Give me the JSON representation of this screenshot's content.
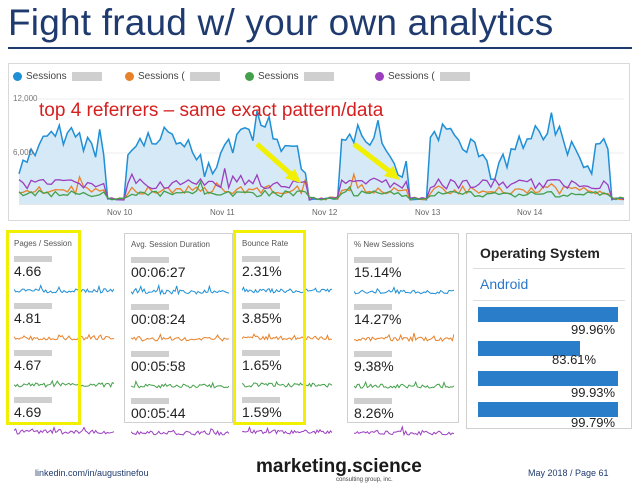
{
  "title": "Fight fraud w/ your own analytics",
  "main_chart": {
    "legend": [
      {
        "label": "Sessions",
        "color": "#1f8fd6"
      },
      {
        "label": "Sessions (",
        "color": "#e8822a"
      },
      {
        "label": "Sessions",
        "color": "#44a04a"
      },
      {
        "label": "Sessions (",
        "color": "#9b3fbf"
      }
    ],
    "annotation": "top 4 referrers – same exact pattern/data",
    "y_max_label": "12,000",
    "y_mid_label": "6,000",
    "x_labels": [
      "Nov 10",
      "Nov 11",
      "Nov 12",
      "Nov 13",
      "Nov 14"
    ]
  },
  "metric_cards": [
    {
      "title": "Pages / Session",
      "values": [
        "4.66",
        "4.81",
        "4.67",
        "4.69"
      ]
    },
    {
      "title": "Avg. Session Duration",
      "values": [
        "00:06:27",
        "00:08:24",
        "00:05:58",
        "00:05:44"
      ]
    },
    {
      "title": "Bounce Rate",
      "values": [
        "2.31%",
        "3.85%",
        "1.65%",
        "1.59%"
      ]
    },
    {
      "title": "% New Sessions",
      "values": [
        "15.14%",
        "14.27%",
        "9.38%",
        "8.26%"
      ]
    }
  ],
  "row_colors": [
    "#1f8fd6",
    "#e8822a",
    "#44a04a",
    "#9b3fbf"
  ],
  "highlight_color": "#f0f000",
  "os_panel": {
    "title": "Operating System",
    "item": "Android",
    "values": [
      "99.96%",
      "83.61%",
      "99.93%",
      "99.79%"
    ],
    "fractions": [
      0.9996,
      0.8361,
      0.9993,
      0.9979
    ],
    "bar_color": "#2a7ec9"
  },
  "footer": {
    "left": "linkedin.com/in/augustinefou",
    "brand": "marketing.science",
    "brand_sub": "consulting group, inc.",
    "right": "May 2018 / Page 61"
  }
}
